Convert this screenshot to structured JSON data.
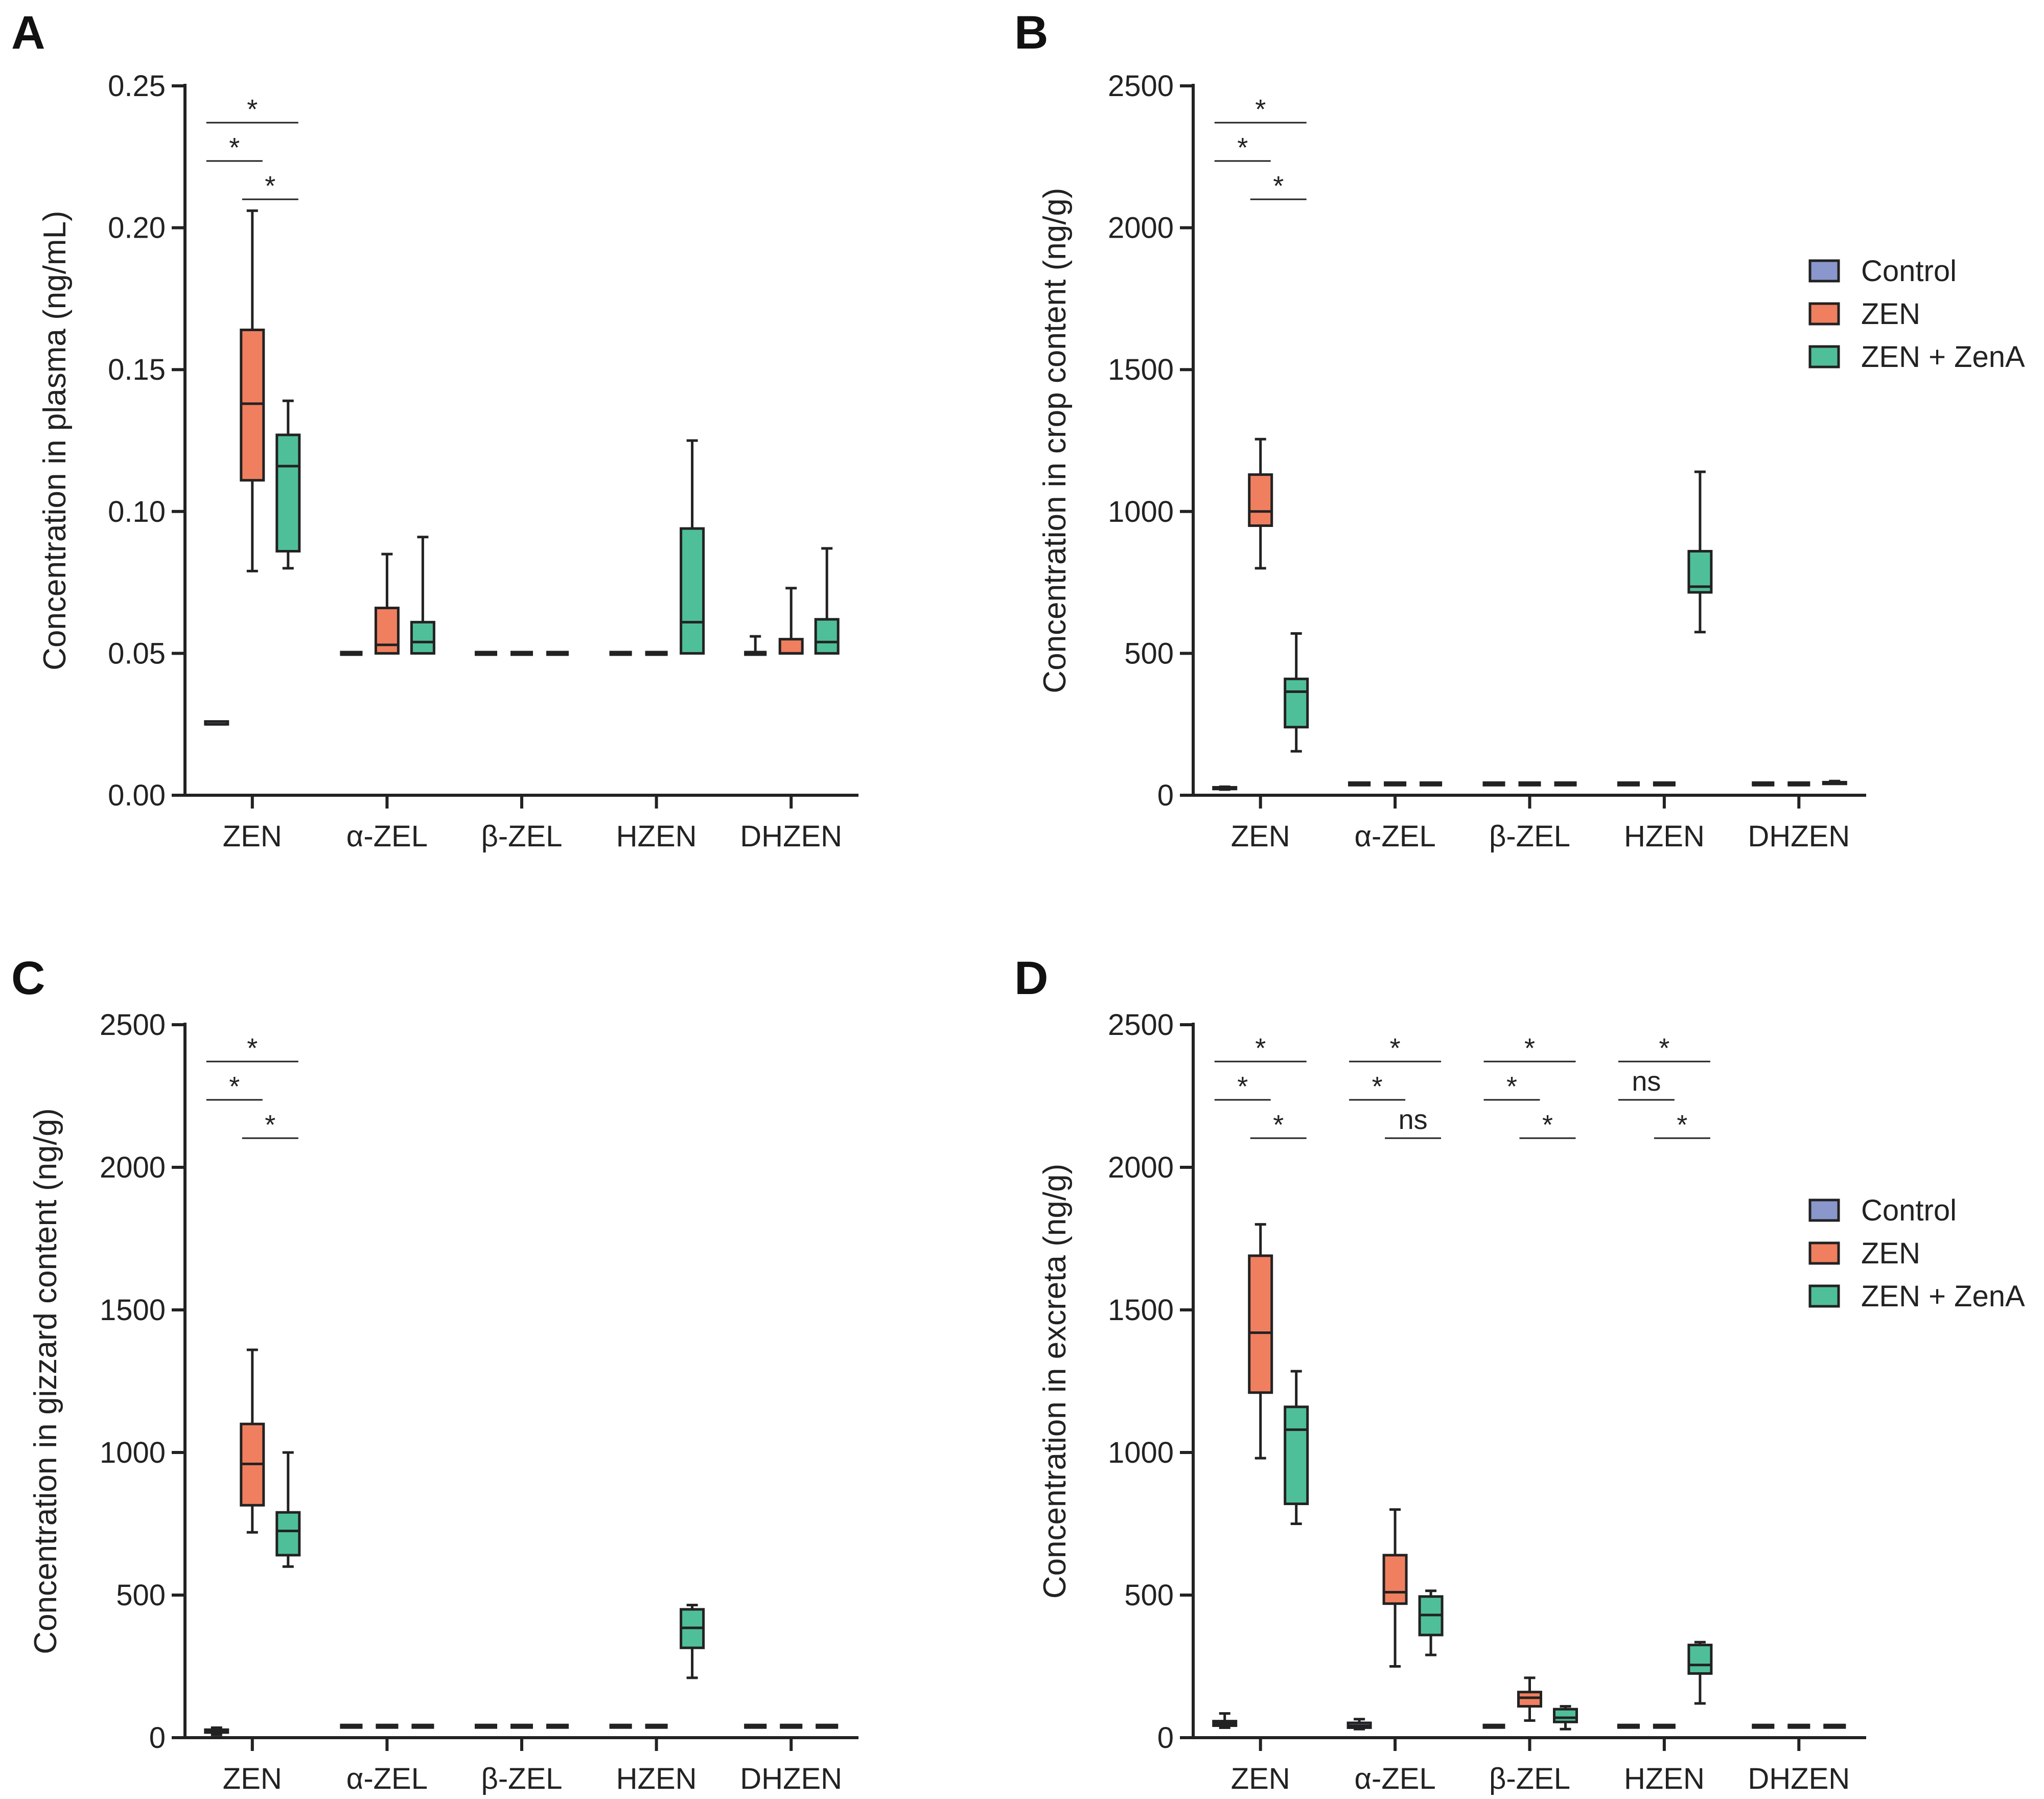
{
  "colors": {
    "Control": "#8a97cc",
    "ZEN": "#f07f5f",
    "ZEN + ZenA": "#4fbf9a",
    "axis": "#222222"
  },
  "legend": {
    "entries": [
      "Control",
      "ZEN",
      "ZEN + ZenA"
    ]
  },
  "chart_data": [
    {
      "id": "A",
      "type": "box",
      "title": "A",
      "ylabel": "Concentration in plasma (ng/mL)",
      "xlabel": "",
      "ylim": [
        0,
        0.25
      ],
      "yticks": [
        "0.00",
        "0.05",
        "0.10",
        "0.15",
        "0.20",
        "0.25"
      ],
      "categories": [
        "ZEN",
        "α-ZEL",
        "β-ZEL",
        "HZEN",
        "DHZEN"
      ],
      "series": [
        {
          "name": "Control",
          "boxes": [
            {
              "min": 0.025,
              "q1": 0.025,
              "median": 0.025,
              "q3": 0.026,
              "max": 0.026
            },
            {
              "min": 0.05,
              "q1": 0.05,
              "median": 0.05,
              "q3": 0.05,
              "max": 0.05
            },
            {
              "min": 0.05,
              "q1": 0.05,
              "median": 0.05,
              "q3": 0.05,
              "max": 0.05
            },
            {
              "min": 0.05,
              "q1": 0.05,
              "median": 0.05,
              "q3": 0.05,
              "max": 0.05
            },
            {
              "min": 0.05,
              "q1": 0.05,
              "median": 0.05,
              "q3": 0.05,
              "max": 0.056
            }
          ]
        },
        {
          "name": "ZEN",
          "boxes": [
            {
              "min": 0.079,
              "q1": 0.111,
              "median": 0.138,
              "q3": 0.164,
              "max": 0.206
            },
            {
              "min": 0.05,
              "q1": 0.05,
              "median": 0.053,
              "q3": 0.066,
              "max": 0.085
            },
            {
              "min": 0.05,
              "q1": 0.05,
              "median": 0.05,
              "q3": 0.05,
              "max": 0.05
            },
            {
              "min": 0.05,
              "q1": 0.05,
              "median": 0.05,
              "q3": 0.05,
              "max": 0.05
            },
            {
              "min": 0.05,
              "q1": 0.05,
              "median": 0.05,
              "q3": 0.055,
              "max": 0.073
            }
          ]
        },
        {
          "name": "ZEN + ZenA",
          "boxes": [
            {
              "min": 0.08,
              "q1": 0.086,
              "median": 0.116,
              "q3": 0.127,
              "max": 0.139
            },
            {
              "min": 0.05,
              "q1": 0.05,
              "median": 0.054,
              "q3": 0.061,
              "max": 0.091
            },
            {
              "min": 0.05,
              "q1": 0.05,
              "median": 0.05,
              "q3": 0.05,
              "max": 0.05
            },
            {
              "min": 0.05,
              "q1": 0.05,
              "median": 0.061,
              "q3": 0.094,
              "max": 0.125
            },
            {
              "min": 0.05,
              "q1": 0.05,
              "median": 0.054,
              "q3": 0.062,
              "max": 0.087
            }
          ]
        }
      ],
      "significance": [
        {
          "category": "ZEN",
          "from": "Control",
          "to": "ZEN + ZenA",
          "label": "*",
          "level": 2
        },
        {
          "category": "ZEN",
          "from": "Control",
          "to": "ZEN",
          "label": "*",
          "level": 1
        },
        {
          "category": "ZEN",
          "from": "ZEN",
          "to": "ZEN + ZenA",
          "label": "*",
          "level": 0
        }
      ],
      "show_legend": false
    },
    {
      "id": "B",
      "type": "box",
      "title": "B",
      "ylabel": "Concentration in crop content (ng/g)",
      "xlabel": "",
      "ylim": [
        0,
        2500
      ],
      "yticks": [
        "0",
        "500",
        "1000",
        "1500",
        "2000",
        "2500"
      ],
      "categories": [
        "ZEN",
        "α-ZEL",
        "β-ZEL",
        "HZEN",
        "DHZEN"
      ],
      "series": [
        {
          "name": "Control",
          "boxes": [
            {
              "min": 20,
              "q1": 22,
              "median": 25,
              "q3": 28,
              "max": 30
            },
            {
              "min": 40,
              "q1": 40,
              "median": 40,
              "q3": 40,
              "max": 40
            },
            {
              "min": 40,
              "q1": 40,
              "median": 40,
              "q3": 40,
              "max": 40
            },
            {
              "min": 40,
              "q1": 40,
              "median": 40,
              "q3": 40,
              "max": 40
            },
            {
              "min": 40,
              "q1": 40,
              "median": 40,
              "q3": 40,
              "max": 40
            }
          ]
        },
        {
          "name": "ZEN",
          "boxes": [
            {
              "min": 800,
              "q1": 950,
              "median": 1000,
              "q3": 1130,
              "max": 1255
            },
            {
              "min": 40,
              "q1": 40,
              "median": 40,
              "q3": 40,
              "max": 40
            },
            {
              "min": 40,
              "q1": 40,
              "median": 40,
              "q3": 40,
              "max": 40
            },
            {
              "min": 40,
              "q1": 40,
              "median": 40,
              "q3": 40,
              "max": 40
            },
            {
              "min": 40,
              "q1": 40,
              "median": 40,
              "q3": 40,
              "max": 40
            }
          ]
        },
        {
          "name": "ZEN + ZenA",
          "boxes": [
            {
              "min": 155,
              "q1": 240,
              "median": 365,
              "q3": 410,
              "max": 570
            },
            {
              "min": 40,
              "q1": 40,
              "median": 40,
              "q3": 40,
              "max": 40
            },
            {
              "min": 40,
              "q1": 40,
              "median": 40,
              "q3": 40,
              "max": 40
            },
            {
              "min": 575,
              "q1": 715,
              "median": 735,
              "q3": 860,
              "max": 1140
            },
            {
              "min": 40,
              "q1": 40,
              "median": 42,
              "q3": 46,
              "max": 50
            }
          ]
        }
      ],
      "significance": [
        {
          "category": "ZEN",
          "from": "Control",
          "to": "ZEN + ZenA",
          "label": "*",
          "level": 2
        },
        {
          "category": "ZEN",
          "from": "Control",
          "to": "ZEN",
          "label": "*",
          "level": 1
        },
        {
          "category": "ZEN",
          "from": "ZEN",
          "to": "ZEN + ZenA",
          "label": "*",
          "level": 0
        }
      ],
      "show_legend": true
    },
    {
      "id": "C",
      "type": "box",
      "title": "C",
      "ylabel": "Concentration in gizzard content (ng/g)",
      "xlabel": "",
      "ylim": [
        0,
        2500
      ],
      "yticks": [
        "0",
        "500",
        "1000",
        "1500",
        "2000",
        "2500"
      ],
      "categories": [
        "ZEN",
        "α-ZEL",
        "β-ZEL",
        "HZEN",
        "DHZEN"
      ],
      "series": [
        {
          "name": "Control",
          "boxes": [
            {
              "min": 10,
              "q1": 18,
              "median": 22,
              "q3": 28,
              "max": 35
            },
            {
              "min": 40,
              "q1": 40,
              "median": 40,
              "q3": 40,
              "max": 40
            },
            {
              "min": 40,
              "q1": 40,
              "median": 40,
              "q3": 40,
              "max": 40
            },
            {
              "min": 40,
              "q1": 40,
              "median": 40,
              "q3": 40,
              "max": 40
            },
            {
              "min": 40,
              "q1": 40,
              "median": 40,
              "q3": 40,
              "max": 40
            }
          ]
        },
        {
          "name": "ZEN",
          "boxes": [
            {
              "min": 720,
              "q1": 815,
              "median": 960,
              "q3": 1100,
              "max": 1360
            },
            {
              "min": 40,
              "q1": 40,
              "median": 40,
              "q3": 40,
              "max": 40
            },
            {
              "min": 40,
              "q1": 40,
              "median": 40,
              "q3": 40,
              "max": 40
            },
            {
              "min": 40,
              "q1": 40,
              "median": 40,
              "q3": 40,
              "max": 40
            },
            {
              "min": 40,
              "q1": 40,
              "median": 40,
              "q3": 40,
              "max": 40
            }
          ]
        },
        {
          "name": "ZEN + ZenA",
          "boxes": [
            {
              "min": 600,
              "q1": 640,
              "median": 725,
              "q3": 790,
              "max": 1000
            },
            {
              "min": 40,
              "q1": 40,
              "median": 40,
              "q3": 40,
              "max": 40
            },
            {
              "min": 40,
              "q1": 40,
              "median": 40,
              "q3": 40,
              "max": 40
            },
            {
              "min": 210,
              "q1": 315,
              "median": 385,
              "q3": 450,
              "max": 465
            },
            {
              "min": 40,
              "q1": 40,
              "median": 40,
              "q3": 40,
              "max": 40
            }
          ]
        }
      ],
      "significance": [
        {
          "category": "ZEN",
          "from": "Control",
          "to": "ZEN + ZenA",
          "label": "*",
          "level": 2
        },
        {
          "category": "ZEN",
          "from": "Control",
          "to": "ZEN",
          "label": "*",
          "level": 1
        },
        {
          "category": "ZEN",
          "from": "ZEN",
          "to": "ZEN + ZenA",
          "label": "*",
          "level": 0
        }
      ],
      "show_legend": false
    },
    {
      "id": "D",
      "type": "box",
      "title": "D",
      "ylabel": "Concentration in excreta (ng/g)",
      "xlabel": "",
      "ylim": [
        0,
        2500
      ],
      "yticks": [
        "0",
        "500",
        "1000",
        "1500",
        "2000",
        "2500"
      ],
      "categories": [
        "ZEN",
        "α-ZEL",
        "β-ZEL",
        "HZEN",
        "DHZEN"
      ],
      "series": [
        {
          "name": "Control",
          "boxes": [
            {
              "min": 35,
              "q1": 42,
              "median": 50,
              "q3": 58,
              "max": 85
            },
            {
              "min": 30,
              "q1": 35,
              "median": 42,
              "q3": 52,
              "max": 65
            },
            {
              "min": 40,
              "q1": 40,
              "median": 40,
              "q3": 40,
              "max": 40
            },
            {
              "min": 40,
              "q1": 40,
              "median": 40,
              "q3": 40,
              "max": 40
            },
            {
              "min": 40,
              "q1": 40,
              "median": 40,
              "q3": 40,
              "max": 40
            }
          ]
        },
        {
          "name": "ZEN",
          "boxes": [
            {
              "min": 980,
              "q1": 1210,
              "median": 1420,
              "q3": 1690,
              "max": 1800
            },
            {
              "min": 250,
              "q1": 470,
              "median": 510,
              "q3": 640,
              "max": 800
            },
            {
              "min": 60,
              "q1": 110,
              "median": 140,
              "q3": 160,
              "max": 210
            },
            {
              "min": 40,
              "q1": 40,
              "median": 40,
              "q3": 40,
              "max": 40
            },
            {
              "min": 40,
              "q1": 40,
              "median": 40,
              "q3": 40,
              "max": 40
            }
          ]
        },
        {
          "name": "ZEN + ZenA",
          "boxes": [
            {
              "min": 750,
              "q1": 820,
              "median": 1080,
              "q3": 1160,
              "max": 1285
            },
            {
              "min": 290,
              "q1": 360,
              "median": 430,
              "q3": 495,
              "max": 515
            },
            {
              "min": 30,
              "q1": 55,
              "median": 70,
              "q3": 100,
              "max": 110
            },
            {
              "min": 120,
              "q1": 225,
              "median": 255,
              "q3": 325,
              "max": 335
            },
            {
              "min": 40,
              "q1": 40,
              "median": 40,
              "q3": 40,
              "max": 40
            }
          ]
        }
      ],
      "significance": [
        {
          "category": "ZEN",
          "from": "Control",
          "to": "ZEN + ZenA",
          "label": "*",
          "level": 2
        },
        {
          "category": "ZEN",
          "from": "Control",
          "to": "ZEN",
          "label": "*",
          "level": 1
        },
        {
          "category": "ZEN",
          "from": "ZEN",
          "to": "ZEN + ZenA",
          "label": "*",
          "level": 0
        },
        {
          "category": "α-ZEL",
          "from": "Control",
          "to": "ZEN + ZenA",
          "label": "*",
          "level": 2
        },
        {
          "category": "α-ZEL",
          "from": "Control",
          "to": "ZEN",
          "label": "*",
          "level": 1
        },
        {
          "category": "α-ZEL",
          "from": "ZEN",
          "to": "ZEN + ZenA",
          "label": "ns",
          "level": 0
        },
        {
          "category": "β-ZEL",
          "from": "Control",
          "to": "ZEN + ZenA",
          "label": "*",
          "level": 2
        },
        {
          "category": "β-ZEL",
          "from": "Control",
          "to": "ZEN",
          "label": "*",
          "level": 1
        },
        {
          "category": "β-ZEL",
          "from": "ZEN",
          "to": "ZEN + ZenA",
          "label": "*",
          "level": 0
        },
        {
          "category": "HZEN",
          "from": "Control",
          "to": "ZEN + ZenA",
          "label": "*",
          "level": 2
        },
        {
          "category": "HZEN",
          "from": "Control",
          "to": "ZEN",
          "label": "ns",
          "level": 1
        },
        {
          "category": "HZEN",
          "from": "ZEN",
          "to": "ZEN + ZenA",
          "label": "*",
          "level": 0
        }
      ],
      "show_legend": true
    }
  ]
}
